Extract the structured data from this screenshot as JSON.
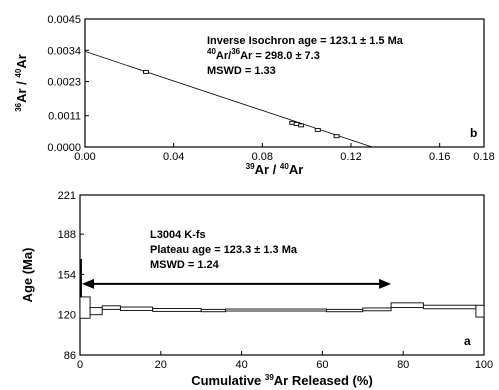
{
  "chart_data": [
    {
      "type": "scatter",
      "panel_label": "b",
      "xlabel": {
        "sup1": "39",
        "main1": "Ar / ",
        "sup2": "40",
        "main2": "Ar"
      },
      "ylabel": {
        "sup1": "36",
        "main1": "Ar / ",
        "sup2": "40",
        "main2": "Ar"
      },
      "xlim": [
        0.0,
        0.18
      ],
      "ylim": [
        0.0,
        0.0045
      ],
      "xticks": [
        "0.00",
        "0.04",
        "0.08",
        "0.12",
        "0.16",
        "0.18"
      ],
      "xtick_values": [
        0.0,
        0.04,
        0.08,
        0.12,
        0.16,
        0.18
      ],
      "yticks": [
        "0.0000",
        "0.0011",
        "0.0023",
        "0.0034",
        "0.0045"
      ],
      "ytick_values": [
        0.0,
        0.0011,
        0.0023,
        0.0034,
        0.0045
      ],
      "annotation": {
        "line1": "Inverse Isochron age = 123.1 ± 1.5 Ma",
        "line2_sup": "40",
        "line2_a": "Ar/",
        "line2_sup2": "36",
        "line2_b": "Ar = 298.0 ± 7.3",
        "line3": "MSWD = 1.33"
      },
      "fit_line": {
        "x": [
          0.0,
          0.1295
        ],
        "y": [
          0.00336,
          0.0
        ]
      },
      "points": [
        {
          "x": 0.0275,
          "y": 0.00264
        },
        {
          "x": 0.0935,
          "y": 0.00085
        },
        {
          "x": 0.0955,
          "y": 0.00081
        },
        {
          "x": 0.0975,
          "y": 0.00076
        },
        {
          "x": 0.105,
          "y": 0.0006
        },
        {
          "x": 0.1135,
          "y": 0.00038
        }
      ]
    },
    {
      "type": "step",
      "panel_label": "a",
      "xlabel": {
        "main1": "Cumulative ",
        "sup1": "39",
        "main2": "Ar Released (%)"
      },
      "ylabel": "Age (Ma)",
      "xlim": [
        0,
        100
      ],
      "ylim": [
        86,
        221
      ],
      "xticks": [
        "0",
        "20",
        "40",
        "60",
        "80",
        "100"
      ],
      "xtick_values": [
        0,
        20,
        40,
        60,
        80,
        100
      ],
      "yticks": [
        "86",
        "120",
        "154",
        "188",
        "221"
      ],
      "ytick_values": [
        86,
        120,
        154,
        188,
        221
      ],
      "annotation": {
        "line1": "L3004 K-fs",
        "line2": "Plateau age = 123.3 ± 1.3 Ma",
        "line3": "MSWD = 1.24"
      },
      "plateau_range": [
        0.5,
        77
      ],
      "plateau_arrow_age": 146,
      "first_step_spike": {
        "x": 0.3,
        "age_low": 118,
        "age_high": 167
      },
      "steps": [
        {
          "x0": 0.0,
          "x1": 2.5,
          "age": 126,
          "err": 9
        },
        {
          "x0": 2.5,
          "x1": 5.5,
          "age": 123,
          "err": 3
        },
        {
          "x0": 5.5,
          "x1": 10.0,
          "age": 126,
          "err": 1.5
        },
        {
          "x0": 10.0,
          "x1": 18.0,
          "age": 125,
          "err": 1.5
        },
        {
          "x0": 18.0,
          "x1": 30.0,
          "age": 124,
          "err": 1.2
        },
        {
          "x0": 30.0,
          "x1": 36.0,
          "age": 123.5,
          "err": 1.0
        },
        {
          "x0": 36.0,
          "x1": 61.0,
          "age": 124,
          "err": 0.8
        },
        {
          "x0": 61.0,
          "x1": 70.0,
          "age": 123.5,
          "err": 1.0
        },
        {
          "x0": 70.0,
          "x1": 77.0,
          "age": 124.5,
          "err": 1.2
        },
        {
          "x0": 77.0,
          "x1": 85.0,
          "age": 128,
          "err": 2.0
        },
        {
          "x0": 85.0,
          "x1": 98.0,
          "age": 126.5,
          "err": 1.5
        },
        {
          "x0": 98.0,
          "x1": 100.0,
          "age": 123,
          "err": 5.0
        }
      ]
    }
  ]
}
